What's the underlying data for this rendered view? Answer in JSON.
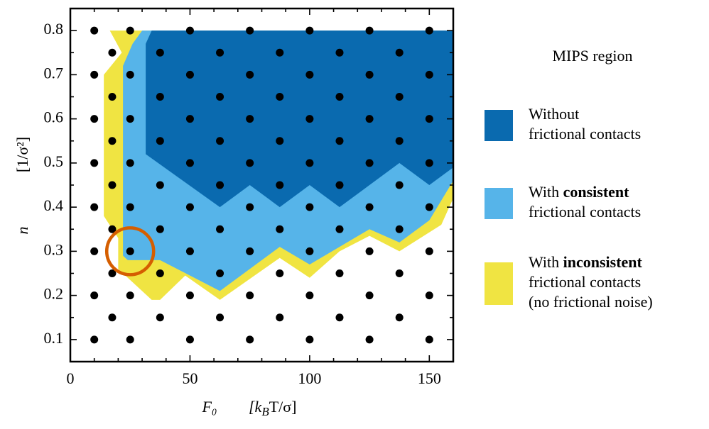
{
  "chart_data": {
    "type": "phase",
    "xlabel": "F₀",
    "xunit": [
      "[k",
      "B",
      "T/σ]"
    ],
    "ylabel": "n",
    "yunit": "[1/σ²]",
    "xlim": [
      0,
      160
    ],
    "ylim": [
      0.05,
      0.85
    ],
    "xticks": [
      0,
      50,
      100,
      150
    ],
    "yticks": [
      0.1,
      0.2,
      0.3,
      0.4,
      0.5,
      0.6,
      0.7,
      0.8
    ],
    "xminorticks": [
      10,
      20,
      30,
      40,
      60,
      70,
      80,
      90,
      110,
      120,
      130,
      140
    ],
    "yminorticks": [
      0.15,
      0.25,
      0.35,
      0.45,
      0.55,
      0.65,
      0.75
    ],
    "legend_title": "MIPS region",
    "regions": [
      {
        "color": "#f0e442",
        "lines": [
          [
            "With ",
            "inconsistent"
          ],
          [
            "frictional contacts"
          ],
          [
            "(no frictional noise)"
          ]
        ],
        "bold": [
          0,
          1
        ],
        "x": [
          16.5,
          160,
          160,
          155,
          137.5,
          125,
          112.5,
          100,
          87.5,
          62.5,
          48,
          37.5,
          34,
          20,
          20,
          14,
          14,
          21.5
        ],
        "y": [
          0.8,
          0.8,
          0.42,
          0.36,
          0.3,
          0.335,
          0.3,
          0.24,
          0.285,
          0.19,
          0.245,
          0.19,
          0.19,
          0.26,
          0.33,
          0.38,
          0.7,
          0.75
        ]
      },
      {
        "color": "#56b4e9",
        "lines": [
          [
            "With ",
            "consistent"
          ],
          [
            "frictional contacts"
          ]
        ],
        "bold": [
          0,
          1
        ],
        "x": [
          22,
          22,
          26,
          30,
          160,
          160,
          150,
          137.5,
          125,
          112.5,
          100,
          87.5,
          62.5,
          37.5,
          24
        ],
        "y": [
          0.29,
          0.72,
          0.77,
          0.8,
          0.8,
          0.46,
          0.37,
          0.32,
          0.35,
          0.31,
          0.27,
          0.31,
          0.21,
          0.28,
          0.28
        ]
      },
      {
        "color": "#0a6aaf",
        "lines": [
          [
            "Without"
          ],
          [
            "frictional contacts"
          ]
        ],
        "x": [
          31.5,
          31.5,
          34,
          160,
          160,
          150,
          137.5,
          125,
          112.5,
          100,
          87.5,
          75,
          62.5
        ],
        "y": [
          0.52,
          0.77,
          0.8,
          0.8,
          0.49,
          0.45,
          0.5,
          0.45,
          0.4,
          0.45,
          0.4,
          0.45,
          0.4
        ]
      }
    ],
    "legend_order": [
      2,
      1,
      0
    ],
    "points": {
      "color": "#000000",
      "x": [
        10,
        25,
        50,
        75,
        100,
        125,
        150,
        17.5,
        37.5,
        62.5,
        87.5,
        112.5,
        137.5,
        10,
        25,
        50,
        75,
        100,
        125,
        150,
        17.5,
        37.5,
        62.5,
        87.5,
        112.5,
        137.5,
        10,
        25,
        50,
        75,
        100,
        125,
        150,
        17.5,
        37.5,
        62.5,
        87.5,
        112.5,
        137.5,
        10,
        25,
        50,
        75,
        100,
        125,
        150,
        17.5,
        37.5,
        62.5,
        87.5,
        112.5,
        137.5,
        10,
        25,
        50,
        75,
        100,
        125,
        150,
        17.5,
        37.5,
        62.5,
        87.5,
        112.5,
        137.5,
        10,
        25,
        50,
        75,
        100,
        125,
        150,
        17.5,
        37.5,
        62.5,
        87.5,
        112.5,
        137.5,
        10,
        25,
        50,
        75,
        100,
        125,
        150,
        17.5,
        37.5,
        62.5,
        87.5,
        112.5,
        137.5,
        10,
        25,
        50,
        75,
        100,
        125,
        150
      ],
      "y": [
        0.1,
        0.1,
        0.1,
        0.1,
        0.1,
        0.1,
        0.1,
        0.15,
        0.15,
        0.15,
        0.15,
        0.15,
        0.15,
        0.2,
        0.2,
        0.2,
        0.2,
        0.2,
        0.2,
        0.2,
        0.25,
        0.25,
        0.25,
        0.25,
        0.25,
        0.25,
        0.3,
        0.3,
        0.3,
        0.3,
        0.3,
        0.3,
        0.3,
        0.35,
        0.35,
        0.35,
        0.35,
        0.35,
        0.35,
        0.4,
        0.4,
        0.4,
        0.4,
        0.4,
        0.4,
        0.4,
        0.45,
        0.45,
        0.45,
        0.45,
        0.45,
        0.45,
        0.5,
        0.5,
        0.5,
        0.5,
        0.5,
        0.5,
        0.5,
        0.55,
        0.55,
        0.55,
        0.55,
        0.55,
        0.55,
        0.6,
        0.6,
        0.6,
        0.6,
        0.6,
        0.6,
        0.6,
        0.65,
        0.65,
        0.65,
        0.65,
        0.65,
        0.65,
        0.7,
        0.7,
        0.7,
        0.7,
        0.7,
        0.7,
        0.7,
        0.75,
        0.75,
        0.75,
        0.75,
        0.75,
        0.75,
        0.8,
        0.8,
        0.8,
        0.8,
        0.8,
        0.8,
        0.8
      ]
    },
    "highlight": {
      "x": 25,
      "y": 0.3,
      "color": "#d55e00"
    }
  }
}
